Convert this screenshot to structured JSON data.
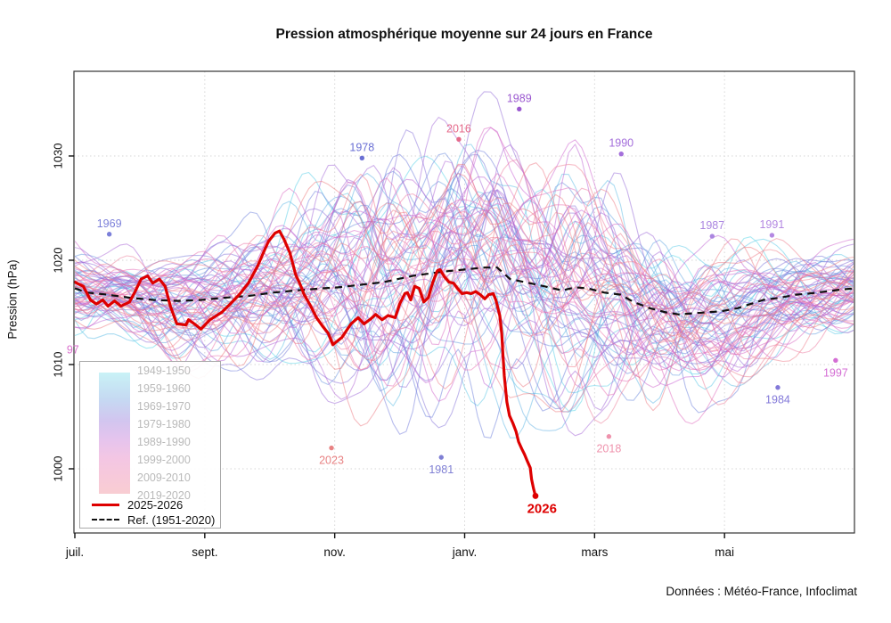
{
  "chart_data": {
    "type": "line",
    "title": "Pression atmosphérique moyenne sur 24 jours en France",
    "ylabel": "Pression (hPa)",
    "xlabel": "",
    "footer": "Données : Météo-France, Infoclimat",
    "xticks": [
      "juil.",
      "sept.",
      "nov.",
      "janv.",
      "mars",
      "mai"
    ],
    "xtick_months": [
      0,
      2,
      4,
      6,
      8,
      10
    ],
    "yticks": [
      "1000",
      "1010",
      "1020",
      "1030"
    ],
    "ytick_values": [
      1000,
      1010,
      1020,
      1030
    ],
    "ylim": [
      993.8,
      1038.3
    ],
    "xlim_months": [
      0,
      12
    ],
    "grid": true,
    "legend": {
      "decades": [
        "1949-1950",
        "1959-1960",
        "1969-1970",
        "1979-1980",
        "1989-1990",
        "1999-2000",
        "2009-2010",
        "2019-2020"
      ],
      "position": "bottom-left"
    },
    "series": [
      {
        "name": "2025-2026",
        "color": "#de0000",
        "style": "solid",
        "width": 3.2,
        "points": [
          [
            0,
            1017.9
          ],
          [
            0.13,
            1017.5
          ],
          [
            0.24,
            1016.2
          ],
          [
            0.33,
            1015.8
          ],
          [
            0.43,
            1016.2
          ],
          [
            0.51,
            1015.6
          ],
          [
            0.61,
            1016.1
          ],
          [
            0.71,
            1015.6
          ],
          [
            0.84,
            1016.0
          ],
          [
            0.92,
            1016.9
          ],
          [
            1.02,
            1018.2
          ],
          [
            1.12,
            1018.5
          ],
          [
            1.2,
            1017.8
          ],
          [
            1.3,
            1018.2
          ],
          [
            1.39,
            1017.5
          ],
          [
            1.47,
            1015.6
          ],
          [
            1.57,
            1013.9
          ],
          [
            1.71,
            1013.8
          ],
          [
            1.75,
            1014.3
          ],
          [
            1.84,
            1013.9
          ],
          [
            1.94,
            1013.4
          ],
          [
            2.08,
            1014.3
          ],
          [
            2.26,
            1015.0
          ],
          [
            2.39,
            1015.8
          ],
          [
            2.53,
            1016.7
          ],
          [
            2.67,
            1017.8
          ],
          [
            2.81,
            1019.4
          ],
          [
            2.9,
            1020.7
          ],
          [
            2.98,
            1021.8
          ],
          [
            3.08,
            1022.6
          ],
          [
            3.15,
            1022.8
          ],
          [
            3.22,
            1022.0
          ],
          [
            3.31,
            1020.7
          ],
          [
            3.4,
            1018.6
          ],
          [
            3.46,
            1017.8
          ],
          [
            3.53,
            1016.7
          ],
          [
            3.63,
            1015.6
          ],
          [
            3.72,
            1014.5
          ],
          [
            3.81,
            1013.7
          ],
          [
            3.9,
            1013.0
          ],
          [
            3.97,
            1011.9
          ],
          [
            4.11,
            1012.6
          ],
          [
            4.25,
            1013.9
          ],
          [
            4.36,
            1014.5
          ],
          [
            4.45,
            1013.9
          ],
          [
            4.56,
            1014.4
          ],
          [
            4.63,
            1014.8
          ],
          [
            4.73,
            1014.3
          ],
          [
            4.82,
            1014.7
          ],
          [
            4.93,
            1014.5
          ],
          [
            5.0,
            1015.8
          ],
          [
            5.08,
            1016.8
          ],
          [
            5.12,
            1016.9
          ],
          [
            5.17,
            1016.2
          ],
          [
            5.23,
            1017.5
          ],
          [
            5.3,
            1017.3
          ],
          [
            5.37,
            1016.0
          ],
          [
            5.44,
            1016.4
          ],
          [
            5.51,
            1017.9
          ],
          [
            5.58,
            1019.0
          ],
          [
            5.62,
            1019.1
          ],
          [
            5.69,
            1018.4
          ],
          [
            5.76,
            1017.9
          ],
          [
            5.83,
            1017.8
          ],
          [
            5.89,
            1017.3
          ],
          [
            5.96,
            1016.8
          ],
          [
            6.03,
            1016.9
          ],
          [
            6.1,
            1016.8
          ],
          [
            6.17,
            1017.0
          ],
          [
            6.24,
            1016.7
          ],
          [
            6.31,
            1016.3
          ],
          [
            6.37,
            1016.7
          ],
          [
            6.44,
            1016.8
          ],
          [
            6.48,
            1016.2
          ],
          [
            6.54,
            1014.7
          ],
          [
            6.57,
            1013.0
          ],
          [
            6.59,
            1010.9
          ],
          [
            6.61,
            1008.9
          ],
          [
            6.65,
            1006.4
          ],
          [
            6.69,
            1005.1
          ],
          [
            6.74,
            1004.4
          ],
          [
            6.79,
            1003.6
          ],
          [
            6.83,
            1002.6
          ],
          [
            6.88,
            1001.9
          ],
          [
            6.92,
            1001.4
          ],
          [
            6.96,
            1000.8
          ],
          [
            7.01,
            1000.1
          ],
          [
            7.03,
            999.0
          ],
          [
            7.06,
            998.1
          ],
          [
            7.09,
            997.4
          ]
        ]
      },
      {
        "name": "Ref. (1951-2020)",
        "color": "#111111",
        "style": "dashed",
        "width": 2.2,
        "points": [
          [
            0,
            1017.3
          ],
          [
            0.2,
            1016.9
          ],
          [
            0.5,
            1016.7
          ],
          [
            0.85,
            1016.4
          ],
          [
            1.2,
            1016.2
          ],
          [
            1.6,
            1016.1
          ],
          [
            1.95,
            1016.2
          ],
          [
            2.3,
            1016.4
          ],
          [
            2.7,
            1016.6
          ],
          [
            3.05,
            1016.9
          ],
          [
            3.4,
            1017.1
          ],
          [
            3.8,
            1017.3
          ],
          [
            4.05,
            1017.4
          ],
          [
            4.75,
            1017.9
          ],
          [
            5.2,
            1018.5
          ],
          [
            5.65,
            1018.9
          ],
          [
            6.3,
            1019.3
          ],
          [
            6.5,
            1019.3
          ],
          [
            6.7,
            1018.2
          ],
          [
            7.0,
            1017.8
          ],
          [
            7.3,
            1017.4
          ],
          [
            7.5,
            1017.1
          ],
          [
            7.7,
            1017.4
          ],
          [
            7.9,
            1017.3
          ],
          [
            8.15,
            1016.9
          ],
          [
            8.4,
            1016.7
          ],
          [
            8.6,
            1016.0
          ],
          [
            8.85,
            1015.4
          ],
          [
            9.1,
            1015.0
          ],
          [
            9.3,
            1014.8
          ],
          [
            9.7,
            1015.0
          ],
          [
            9.95,
            1015.1
          ],
          [
            10.2,
            1015.4
          ],
          [
            10.4,
            1015.8
          ],
          [
            10.6,
            1016.2
          ],
          [
            10.85,
            1016.4
          ],
          [
            11.1,
            1016.7
          ],
          [
            11.3,
            1016.8
          ],
          [
            11.55,
            1017.0
          ],
          [
            11.8,
            1017.2
          ],
          [
            12,
            1017.3
          ]
        ]
      }
    ],
    "annotations": [
      {
        "year": "1969",
        "m": 0.53,
        "hpa": 1022.5,
        "color": "#7b7fd9",
        "pos": "above"
      },
      {
        "year": "1978",
        "m": 4.42,
        "hpa": 1029.8,
        "color": "#6a6fd4",
        "pos": "above"
      },
      {
        "year": "2016",
        "m": 5.91,
        "hpa": 1031.6,
        "color": "#e56a8a",
        "pos": "above"
      },
      {
        "year": "1989",
        "m": 6.84,
        "hpa": 1034.5,
        "color": "#9b59d0",
        "pos": "above"
      },
      {
        "year": "1990",
        "m": 8.41,
        "hpa": 1030.2,
        "color": "#a46fdb",
        "pos": "above"
      },
      {
        "year": "1987",
        "m": 9.81,
        "hpa": 1022.3,
        "color": "#ab86e0",
        "pos": "above"
      },
      {
        "year": "1991",
        "m": 10.73,
        "hpa": 1022.4,
        "color": "#b488e2",
        "pos": "above"
      },
      {
        "year": "1997",
        "m": 11.71,
        "hpa": 1010.4,
        "color": "#d46ed4",
        "pos": "below"
      },
      {
        "year": "1984",
        "m": 10.82,
        "hpa": 1007.8,
        "color": "#8379d9",
        "pos": "below"
      },
      {
        "year": "2018",
        "m": 8.22,
        "hpa": 1003.1,
        "color": "#ef93ad",
        "pos": "below"
      },
      {
        "year": "1981",
        "m": 5.64,
        "hpa": 1001.1,
        "color": "#7f7fd4",
        "pos": "below"
      },
      {
        "year": "2023",
        "m": 3.95,
        "hpa": 1002.0,
        "color": "#e88283",
        "pos": "below"
      },
      {
        "year": "97",
        "m": -0.03,
        "hpa": 1011.4,
        "color": "#d96ecc",
        "pos": "text-only"
      },
      {
        "year": "2026",
        "m": 7.19,
        "hpa": 996.1,
        "color": "#de0000",
        "pos": "text-bold"
      }
    ],
    "ensemble": {
      "year_start": 1949,
      "year_end": 2024,
      "description": "One line per season (July-June), pressure smoothed over 24 days, colored by decade from cyan (1949) to pink/salmon (2020s)",
      "opacity": 0.5,
      "color_stops": [
        [
          0,
          "#53d6e8"
        ],
        [
          0.13,
          "#5fb0e4"
        ],
        [
          0.28,
          "#6a7edb"
        ],
        [
          0.45,
          "#9767d8"
        ],
        [
          0.6,
          "#c75fd3"
        ],
        [
          0.75,
          "#ea6fb4"
        ],
        [
          0.87,
          "#ef7f95"
        ],
        [
          1,
          "#ee7878"
        ]
      ]
    }
  },
  "colors": {
    "red": "#de0000",
    "grid": "#d6d6d6",
    "axis": "#333333",
    "legend_text_gray": "#b9b9b9"
  }
}
